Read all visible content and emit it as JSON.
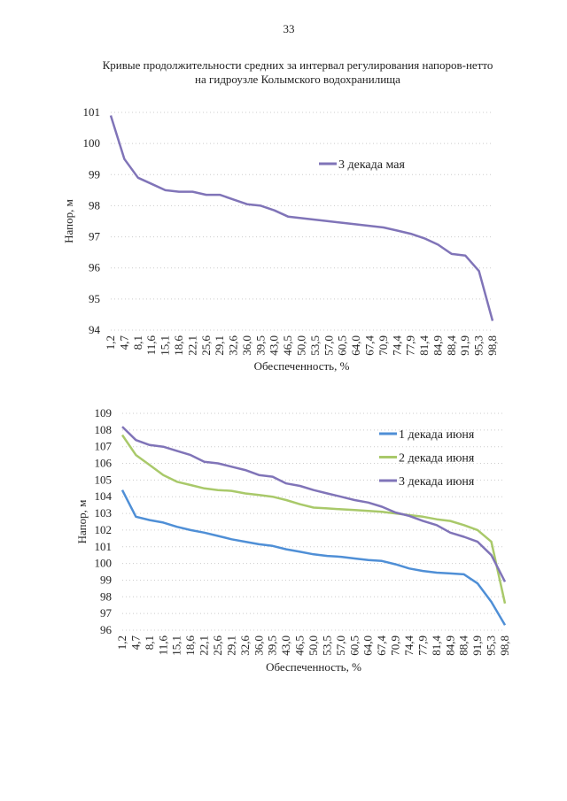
{
  "page_number": "33",
  "chart_data": [
    {
      "type": "line",
      "title": [
        "Кривые продолжительности средних за интервал регулирования напоров-нетто",
        "на гидроузле Колымского водохранилища"
      ],
      "x_label": "Обеспеченность, %",
      "y_label": "Напор, м",
      "categories": [
        "1,2",
        "4,7",
        "8,1",
        "11,6",
        "15,1",
        "18,6",
        "22,1",
        "25,6",
        "29,1",
        "32,6",
        "36,0",
        "39,5",
        "43,0",
        "46,5",
        "50,0",
        "53,5",
        "57,0",
        "60,5",
        "64,0",
        "67,4",
        "70,9",
        "74,4",
        "77,9",
        "81,4",
        "84,9",
        "88,4",
        "91,9",
        "95,3",
        "98,8"
      ],
      "ylim": [
        94,
        101
      ],
      "yticks": [
        94,
        95,
        96,
        97,
        98,
        99,
        100,
        101
      ],
      "grid": true,
      "series": [
        {
          "name": "3 декада мая",
          "color": "#8074b8",
          "values": [
            100.9,
            99.5,
            98.9,
            98.7,
            98.5,
            98.45,
            98.45,
            98.35,
            98.35,
            98.2,
            98.05,
            98.0,
            97.85,
            97.65,
            97.6,
            97.55,
            97.5,
            97.45,
            97.4,
            97.35,
            97.3,
            97.2,
            97.1,
            96.95,
            96.75,
            96.45,
            96.4,
            95.9,
            94.3
          ]
        }
      ]
    },
    {
      "type": "line",
      "x_label": "Обеспеченность, %",
      "y_label": "Напор, м",
      "categories": [
        "1,2",
        "4,7",
        "8,1",
        "11,6",
        "15,1",
        "18,6",
        "22,1",
        "25,6",
        "29,1",
        "32,6",
        "36,0",
        "39,5",
        "43,0",
        "46,5",
        "50,0",
        "53,5",
        "57,0",
        "60,5",
        "64,0",
        "67,4",
        "70,9",
        "74,4",
        "77,9",
        "81,4",
        "84,9",
        "88,4",
        "91,9",
        "95,3",
        "98,8"
      ],
      "ylim": [
        96,
        109
      ],
      "yticks": [
        96,
        97,
        98,
        99,
        100,
        101,
        102,
        103,
        104,
        105,
        106,
        107,
        108,
        109
      ],
      "grid": true,
      "series": [
        {
          "name": "1 декада июня",
          "color": "#4f8fd6",
          "values": [
            104.4,
            102.8,
            102.6,
            102.45,
            102.2,
            102.0,
            101.85,
            101.65,
            101.45,
            101.3,
            101.15,
            101.05,
            100.85,
            100.7,
            100.55,
            100.45,
            100.4,
            100.3,
            100.2,
            100.15,
            99.95,
            99.7,
            99.55,
            99.45,
            99.4,
            99.35,
            98.8,
            97.7,
            96.3
          ]
        },
        {
          "name": "2 декада июня",
          "color": "#a9c96a",
          "values": [
            107.7,
            106.5,
            105.9,
            105.3,
            104.9,
            104.7,
            104.5,
            104.4,
            104.35,
            104.2,
            104.1,
            104.0,
            103.8,
            103.55,
            103.35,
            103.3,
            103.25,
            103.2,
            103.15,
            103.1,
            103.0,
            102.9,
            102.8,
            102.65,
            102.55,
            102.3,
            102.0,
            101.3,
            97.6
          ]
        },
        {
          "name": "3 декада июня",
          "color": "#8074b8",
          "values": [
            108.2,
            107.4,
            107.1,
            107.0,
            106.75,
            106.5,
            106.1,
            106.0,
            105.8,
            105.6,
            105.3,
            105.2,
            104.8,
            104.65,
            104.4,
            104.2,
            104.0,
            103.8,
            103.65,
            103.4,
            103.05,
            102.85,
            102.55,
            102.3,
            101.85,
            101.6,
            101.3,
            100.5,
            98.9
          ]
        }
      ]
    }
  ]
}
